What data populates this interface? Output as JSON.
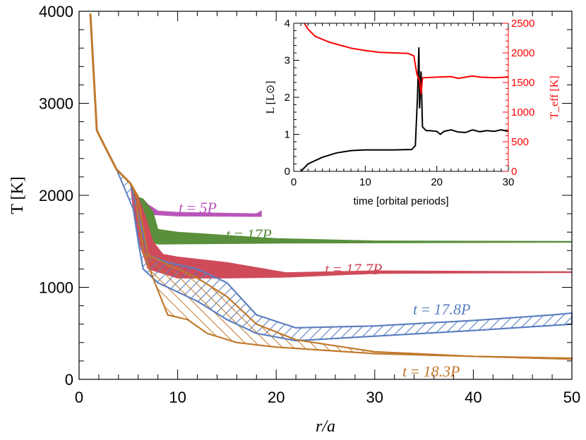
{
  "chart_data": [
    {
      "type": "area",
      "xlabel": "r/a",
      "ylabel": "T [K]",
      "xlim": [
        0,
        50
      ],
      "ylim": [
        0,
        4000
      ],
      "xticks": [
        "0",
        "10",
        "20",
        "30",
        "40",
        "50"
      ],
      "yticks": [
        "0",
        "1000",
        "2000",
        "3000",
        "4000"
      ],
      "grid": false,
      "common_inner_profile": {
        "x": [
          1.15,
          1.8,
          2.7,
          3.8,
          5.2,
          6.0
        ],
        "T": [
          3970,
          2705,
          2513,
          2283,
          2130,
          1980
        ]
      },
      "series": [
        {
          "name": "t = 5P",
          "color": "#b955b9",
          "fill": "solid",
          "upper": {
            "x": [
              6.0,
              6.5,
              7,
              8,
              10,
              18,
              18.5
            ],
            "T": [
              1980,
              1960,
              1900,
              1830,
              1815,
              1800,
              1830
            ]
          },
          "lower": {
            "x": [
              6.0,
              6.5,
              7.5,
              10,
              18,
              18.5
            ],
            "T": [
              1980,
              1900,
              1790,
              1775,
              1770,
              1770
            ]
          }
        },
        {
          "name": "t = 17P",
          "color": "#5a8f3c",
          "fill": "solid",
          "upper": {
            "x": [
              6.0,
              6.5,
              7.5,
              8,
              10,
              20,
              30,
              50
            ],
            "T": [
              1980,
              1960,
              1820,
              1630,
              1600,
              1530,
              1505,
              1500
            ]
          },
          "lower": {
            "x": [
              6.0,
              7,
              8,
              20,
              50
            ],
            "T": [
              1800,
              1500,
              1470,
              1480,
              1490
            ]
          }
        },
        {
          "name": "t = 17.7P",
          "color": "#d04b5a",
          "fill": "solid",
          "upper": {
            "x": [
              6.0,
              6.8,
              7.5,
              8.5,
              10,
              15,
              21,
              30,
              50
            ],
            "T": [
              1980,
              1750,
              1500,
              1360,
              1330,
              1270,
              1160,
              1180,
              1170
            ]
          },
          "lower": {
            "x": [
              5.5,
              6.2,
              7,
              10,
              15,
              21,
              30,
              50
            ],
            "T": [
              1850,
              1450,
              1200,
              1100,
              1100,
              1110,
              1150,
              1160
            ]
          }
        },
        {
          "name": "t = 17.8P",
          "color": "#5b7fc0",
          "fill": "hatch-forward",
          "upper": {
            "x": [
              5.2,
              6,
              7,
              9,
              12,
              15,
              18,
              22,
              30,
              40,
              48,
              50
            ],
            "T": [
              2130,
              1800,
              1350,
              1270,
              1200,
              1050,
              700,
              560,
              580,
              640,
              700,
              720
            ]
          },
          "lower": {
            "x": [
              5.5,
              6,
              6.5,
              8,
              12,
              15,
              18,
              22,
              30,
              40,
              50
            ],
            "T": [
              1850,
              1500,
              1200,
              1050,
              850,
              650,
              500,
              420,
              470,
              530,
              600
            ]
          }
        },
        {
          "name": "t = 18.3P",
          "color": "#c0792c",
          "fill": "hatch-back",
          "upper": {
            "x": [
              6,
              7,
              9,
              12,
              15,
              18,
              22,
              30,
              40,
              50
            ],
            "T": [
              1950,
              1350,
              1250,
              1100,
              900,
              600,
              430,
              300,
              250,
              230
            ]
          },
          "lower": {
            "x": [
              5.8,
              6.5,
              7.5,
              9,
              11,
              13,
              16,
              20,
              30,
              50
            ],
            "T": [
              1900,
              1400,
              1100,
              700,
              650,
              500,
              400,
              350,
              280,
              220
            ]
          }
        }
      ],
      "labels": [
        {
          "text_t": "t",
          "text_eq": " = ",
          "text_val": "5P"
        },
        {
          "text_t": "t",
          "text_eq": " = ",
          "text_val": "17P"
        },
        {
          "text_t": "t",
          "text_eq": " = ",
          "text_val": "17.7P"
        },
        {
          "text_t": "t",
          "text_eq": " = ",
          "text_val": "17.8P"
        },
        {
          "text_t": "t",
          "text_eq": " = ",
          "text_val": "18.3P"
        }
      ]
    },
    {
      "type": "line",
      "inset": true,
      "xlabel": "time [orbital periods]",
      "ylabel": "L [L⊙]",
      "ylabel_right": "T_eff [K]",
      "ylabel_right_main": "T",
      "ylabel_right_sub": "eff",
      "ylabel_right_unit": " [K]",
      "ylabel_left_main": "L",
      "ylabel_left_unit_open": " [",
      "ylabel_left_unit_sym": "L",
      "ylabel_left_unit_sub": "⊙",
      "ylabel_left_unit_close": "]",
      "xlim": [
        0,
        30
      ],
      "ylim": [
        0,
        4
      ],
      "ylim_right": [
        0,
        2500
      ],
      "xticks": [
        "0",
        "10",
        "20",
        "30"
      ],
      "yticks": [
        "0",
        "1",
        "2",
        "3",
        "4"
      ],
      "yticks_right": [
        "0",
        "500",
        "1000",
        "1500",
        "2000",
        "2500"
      ],
      "series": [
        {
          "name": "L",
          "axis": "left",
          "color": "#000000",
          "x": [
            0,
            0.5,
            1,
            2,
            4,
            6,
            8,
            10,
            14,
            16.5,
            17,
            17.3,
            17.5,
            17.6,
            17.8,
            18,
            18.5,
            19,
            20,
            20.5,
            21,
            22,
            23,
            24,
            25,
            26,
            27,
            28,
            29,
            30
          ],
          "y": [
            0,
            -0.05,
            0.0,
            0.2,
            0.38,
            0.5,
            0.56,
            0.58,
            0.58,
            0.59,
            0.7,
            2.0,
            3.35,
            1.7,
            2.7,
            1.2,
            1.1,
            1.1,
            1.08,
            1.0,
            1.08,
            1.12,
            1.06,
            1.05,
            1.12,
            1.07,
            1.1,
            1.08,
            1.12,
            1.08
          ]
        },
        {
          "name": "Teff",
          "axis": "right",
          "color": "#ff0000",
          "x": [
            1.5,
            2,
            3,
            5,
            8,
            10,
            12,
            16,
            16.8,
            17.2,
            17.6,
            17.8,
            18,
            20,
            22,
            23,
            25,
            26,
            28,
            30
          ],
          "y": [
            2500,
            2400,
            2280,
            2180,
            2080,
            2040,
            2010,
            1990,
            1950,
            1650,
            1520,
            1300,
            1580,
            1590,
            1600,
            1570,
            1610,
            1590,
            1580,
            1590
          ]
        }
      ]
    }
  ]
}
